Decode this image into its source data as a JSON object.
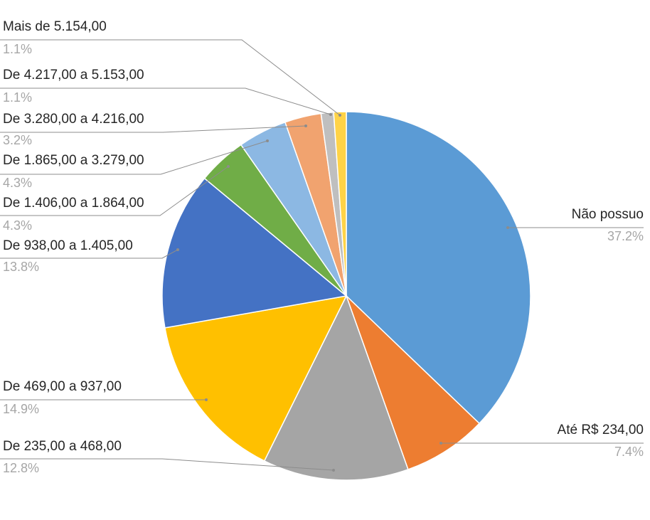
{
  "chart_data": {
    "type": "pie",
    "title": "",
    "start": "top",
    "direction": "clockwise",
    "slices": [
      {
        "label": "Não possuo",
        "value": 37.2,
        "pct_label": "37.2%",
        "color": "#5B9BD5"
      },
      {
        "label": "Até R$ 234,00",
        "value": 7.4,
        "pct_label": "7.4%",
        "color": "#ED7D31"
      },
      {
        "label": "De 235,00 a 468,00",
        "value": 12.8,
        "pct_label": "12.8%",
        "color": "#A5A5A5"
      },
      {
        "label": "De 469,00 a 937,00",
        "value": 14.9,
        "pct_label": "14.9%",
        "color": "#FFC000"
      },
      {
        "label": "De 938,00 a 1.405,00",
        "value": 13.8,
        "pct_label": "13.8%",
        "color": "#4472C4"
      },
      {
        "label": "De 1.406,00 a 1.864,00",
        "value": 4.3,
        "pct_label": "4.3%",
        "color": "#70AD47"
      },
      {
        "label": "De 1.865,00 a 3.279,00",
        "value": 4.3,
        "pct_label": "4.3%",
        "color": "#8CB8E3"
      },
      {
        "label": "De 3.280,00 a 4.216,00",
        "value": 3.2,
        "pct_label": "3.2%",
        "color": "#F1A36F"
      },
      {
        "label": "De 4.217,00 a 5.153,00",
        "value": 1.1,
        "pct_label": "1.1%",
        "color": "#BFBFBF"
      },
      {
        "label": "Mais de 5.154,00",
        "value": 1.1,
        "pct_label": "1.1%",
        "color": "#FFD347"
      }
    ],
    "legend": "none"
  }
}
